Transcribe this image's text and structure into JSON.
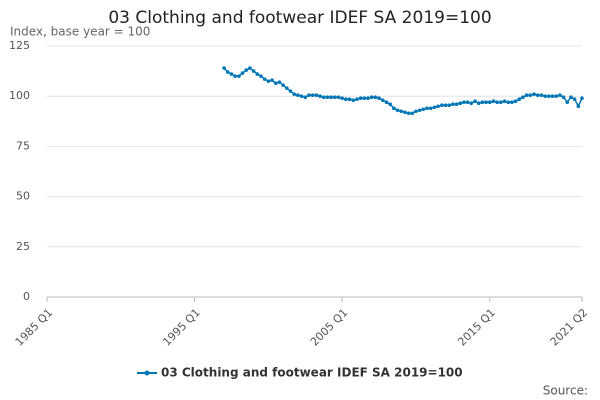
{
  "chart_data": {
    "type": "line",
    "title": "03 Clothing and footwear IDEF SA 2019=100",
    "y_label": "Index, base year = 100",
    "source": "Source:",
    "categories": [
      "1985 Q1",
      null,
      null,
      null,
      null,
      null,
      null,
      null,
      null,
      null,
      null,
      null,
      null,
      null,
      null,
      null,
      null,
      null,
      null,
      null,
      null,
      null,
      null,
      null,
      null,
      null,
      null,
      null,
      null,
      null,
      null,
      null,
      null,
      null,
      null,
      null,
      null,
      null,
      null,
      null,
      "1995 Q1",
      null,
      null,
      null,
      null,
      null,
      null,
      null,
      null,
      null,
      null,
      null,
      null,
      null,
      null,
      null,
      null,
      null,
      null,
      null,
      null,
      null,
      null,
      null,
      null,
      null,
      null,
      null,
      null,
      null,
      null,
      null,
      null,
      null,
      null,
      null,
      null,
      null,
      null,
      null,
      "2005 Q1",
      null,
      null,
      null,
      null,
      null,
      null,
      null,
      null,
      null,
      null,
      null,
      null,
      null,
      null,
      null,
      null,
      null,
      null,
      null,
      null,
      null,
      null,
      null,
      null,
      null,
      null,
      null,
      null,
      null,
      null,
      null,
      null,
      null,
      null,
      null,
      null,
      null,
      null,
      null,
      "2015 Q1",
      null,
      null,
      null,
      null,
      null,
      null,
      null,
      null,
      null,
      null,
      null,
      null,
      null,
      null,
      null,
      null,
      null,
      null,
      null,
      null,
      null,
      null,
      null,
      null,
      "2021 Q2"
    ],
    "series": [
      {
        "name": "03 Clothing and footwear IDEF SA 2019=100",
        "color": "#0076b6",
        "values": [
          null,
          null,
          null,
          null,
          null,
          null,
          null,
          null,
          null,
          null,
          null,
          null,
          null,
          null,
          null,
          null,
          null,
          null,
          null,
          null,
          null,
          null,
          null,
          null,
          null,
          null,
          null,
          null,
          null,
          null,
          null,
          null,
          null,
          null,
          null,
          null,
          null,
          null,
          null,
          null,
          null,
          null,
          null,
          null,
          null,
          null,
          null,
          null,
          114,
          112,
          111,
          110,
          110,
          111.5,
          113,
          114,
          112.5,
          111,
          110,
          108.5,
          107.5,
          108,
          106.5,
          107,
          105.5,
          104,
          102.5,
          101,
          100.5,
          100,
          99.5,
          100.5,
          100.5,
          100.5,
          100,
          99.5,
          99.5,
          99.5,
          99.5,
          99.5,
          99,
          98.5,
          98.5,
          98,
          98.5,
          99,
          99,
          99,
          99.5,
          99.5,
          99,
          98,
          97,
          96,
          94,
          93,
          92.5,
          92,
          91.5,
          91.5,
          92.5,
          93,
          93.5,
          94,
          94,
          94.5,
          95,
          95.5,
          95.5,
          95.5,
          96,
          96,
          96.5,
          97,
          97,
          96.5,
          97.5,
          96.5,
          97,
          97,
          97,
          97.5,
          97,
          97,
          97.5,
          97,
          97,
          97.5,
          98.5,
          99.5,
          100.5,
          100.5,
          101,
          100.5,
          100.5,
          100,
          100,
          100,
          100,
          100.5,
          99.5,
          97,
          99.5,
          98.5,
          95,
          99
        ]
      }
    ],
    "ylim": [
      0,
      125
    ],
    "yticks": [
      0,
      25,
      50,
      75,
      100,
      125
    ],
    "grid": true,
    "legend": "bottom"
  }
}
